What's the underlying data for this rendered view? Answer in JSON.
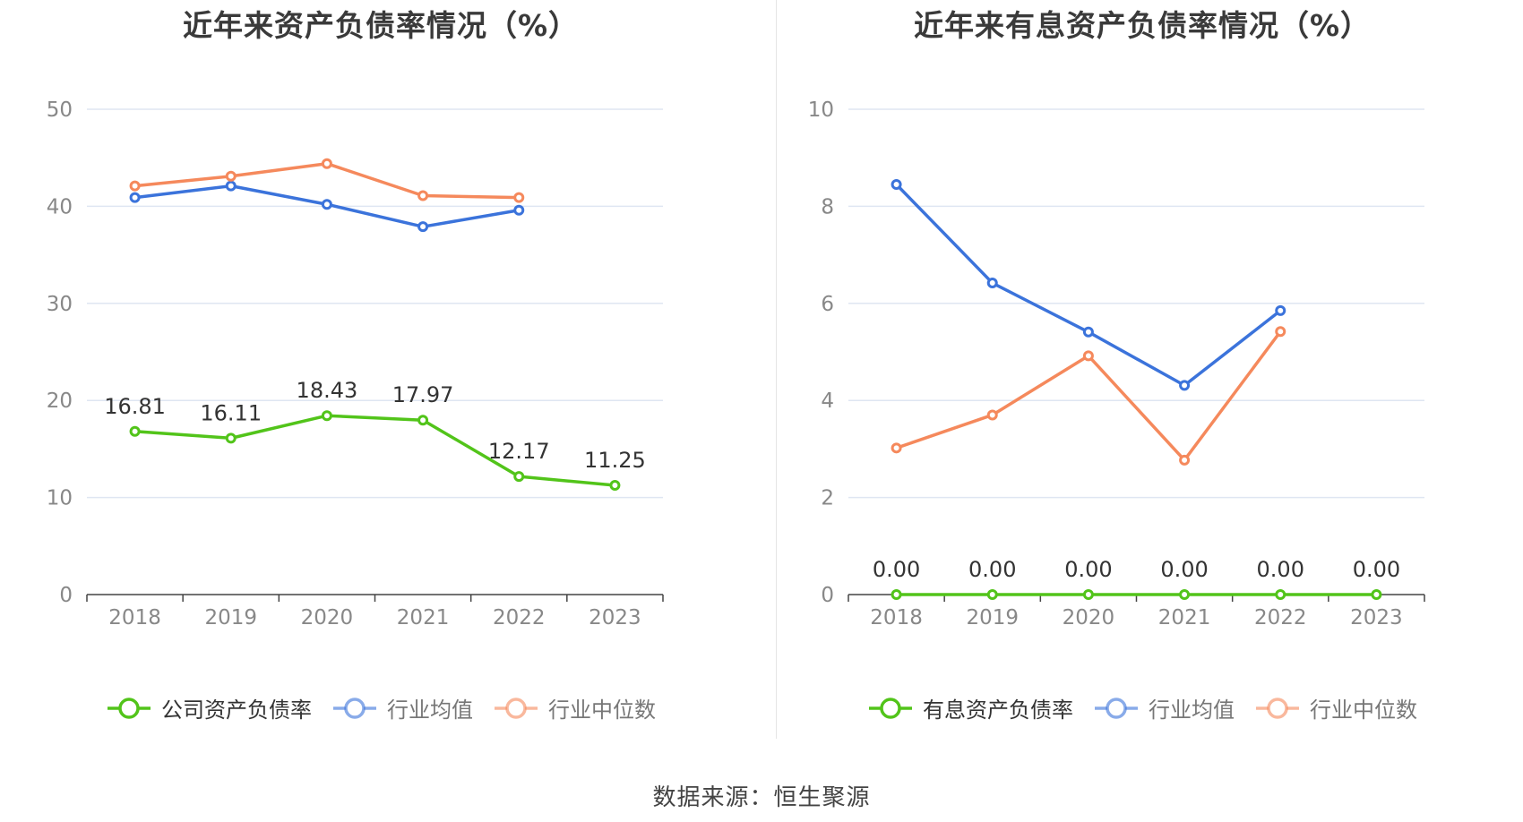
{
  "chart_data": [
    {
      "type": "line",
      "title": "近年来资产负债率情况（%）",
      "categories": [
        "2018",
        "2019",
        "2020",
        "2021",
        "2022",
        "2023"
      ],
      "ylim": [
        0,
        50
      ],
      "yticks": [
        "0",
        "10",
        "20",
        "30",
        "40",
        "50"
      ],
      "grid": true,
      "legend_position": "bottom",
      "series": [
        {
          "name": "公司资产负债率",
          "color": "#52c41a",
          "values": [
            16.81,
            16.11,
            18.43,
            17.97,
            12.17,
            11.25
          ],
          "labels": [
            "16.81",
            "16.11",
            "18.43",
            "17.97",
            "12.17",
            "11.25"
          ],
          "dim": false
        },
        {
          "name": "行业均值",
          "color": "#3b73db",
          "values": [
            40.9,
            42.1,
            40.2,
            37.9,
            39.6,
            null
          ],
          "dim": true
        },
        {
          "name": "行业中位数",
          "color": "#f5895c",
          "values": [
            42.1,
            43.1,
            44.4,
            41.1,
            40.9,
            null
          ],
          "dim": true
        }
      ]
    },
    {
      "type": "line",
      "title": "近年来有息资产负债率情况（%）",
      "categories": [
        "2018",
        "2019",
        "2020",
        "2021",
        "2022",
        "2023"
      ],
      "ylim": [
        0,
        10
      ],
      "yticks": [
        "0",
        "2",
        "4",
        "6",
        "8",
        "10"
      ],
      "grid": true,
      "legend_position": "bottom",
      "series": [
        {
          "name": "有息资产负债率",
          "color": "#52c41a",
          "values": [
            0,
            0,
            0,
            0,
            0,
            0
          ],
          "labels": [
            "0.00",
            "0.00",
            "0.00",
            "0.00",
            "0.00",
            "0.00"
          ],
          "dim": false
        },
        {
          "name": "行业均值",
          "color": "#3b73db",
          "values": [
            8.45,
            6.42,
            5.41,
            4.31,
            5.85,
            null
          ],
          "dim": true
        },
        {
          "name": "行业中位数",
          "color": "#f5895c",
          "values": [
            3.02,
            3.7,
            4.92,
            2.77,
            5.42,
            null
          ],
          "dim": true
        }
      ]
    }
  ],
  "source_text": "数据来源：恒生聚源"
}
